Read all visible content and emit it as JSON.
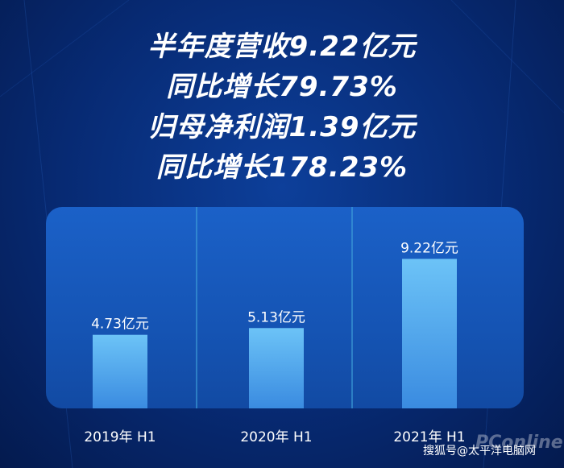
{
  "headlines": [
    "半年度营收9.22亿元",
    "同比增长79.73%",
    "归母净利润1.39亿元",
    "同比增长178.23%"
  ],
  "watermark": {
    "text": "搜狐号@太平洋电脑网",
    "logo": "PConline"
  },
  "colors": {
    "background": "#072a73",
    "panel": "#1554b4",
    "bar": "#5fb6f2",
    "text": "#ffffff"
  },
  "chart_data": {
    "type": "bar",
    "categories": [
      "2019年 H1",
      "2020年 H1",
      "2021年 H1"
    ],
    "values": [
      4.73,
      5.13,
      9.22
    ],
    "data_labels": [
      "4.73亿元",
      "5.13亿元",
      "9.22亿元"
    ],
    "title": "",
    "xlabel": "",
    "ylabel": "",
    "ylim": [
      0,
      10
    ],
    "grid": false,
    "legend": "none"
  }
}
